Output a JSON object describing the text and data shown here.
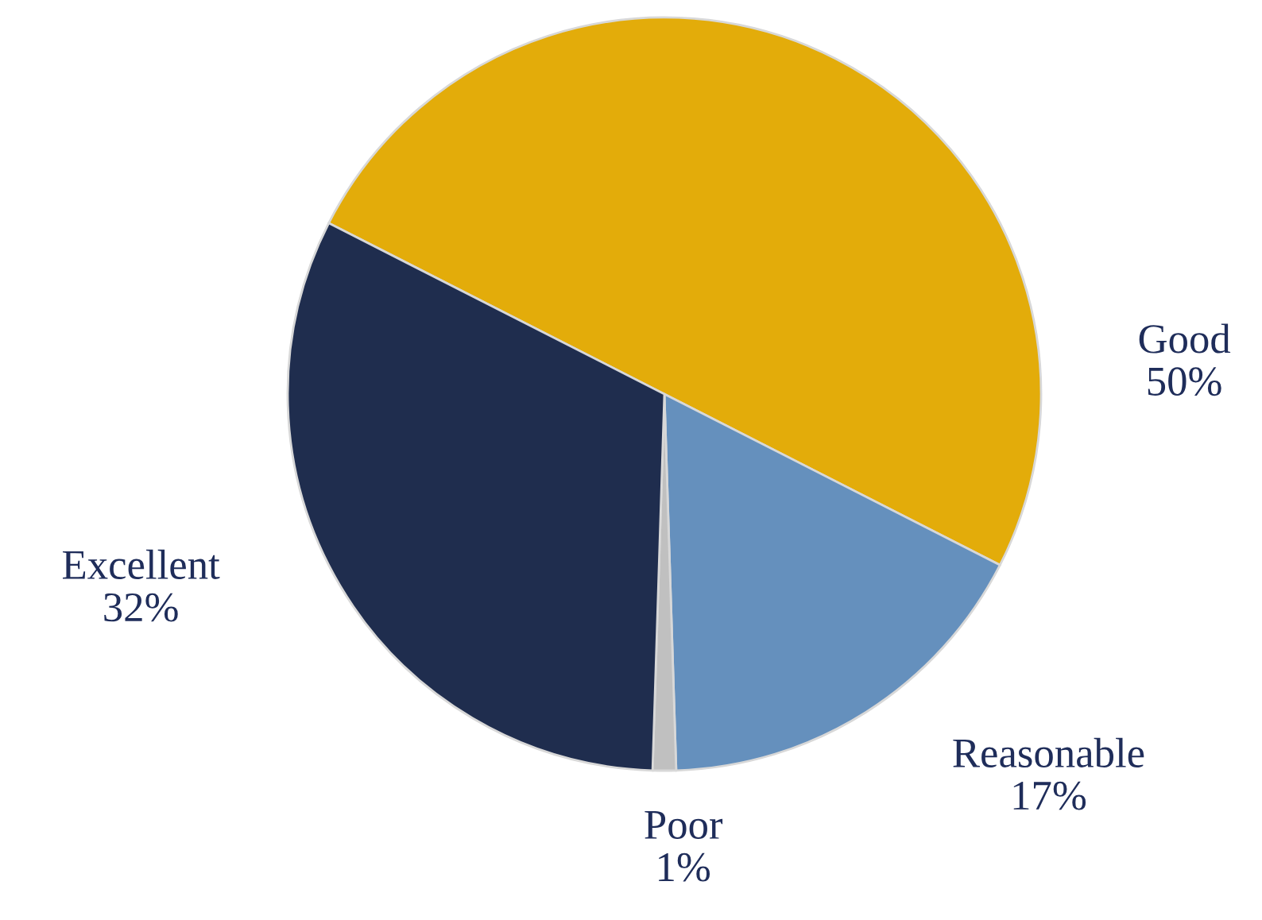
{
  "chart_data": {
    "type": "pie",
    "categories": [
      "Good",
      "Reasonable",
      "Poor",
      "Excellent"
    ],
    "values": [
      50,
      17,
      1,
      32
    ],
    "value_labels": [
      "50%",
      "17%",
      "1%",
      "32%"
    ],
    "colors": [
      "#e3ac0a",
      "#6590bd",
      "#c0c0c0",
      "#1f2d4e"
    ],
    "legend": false
  }
}
